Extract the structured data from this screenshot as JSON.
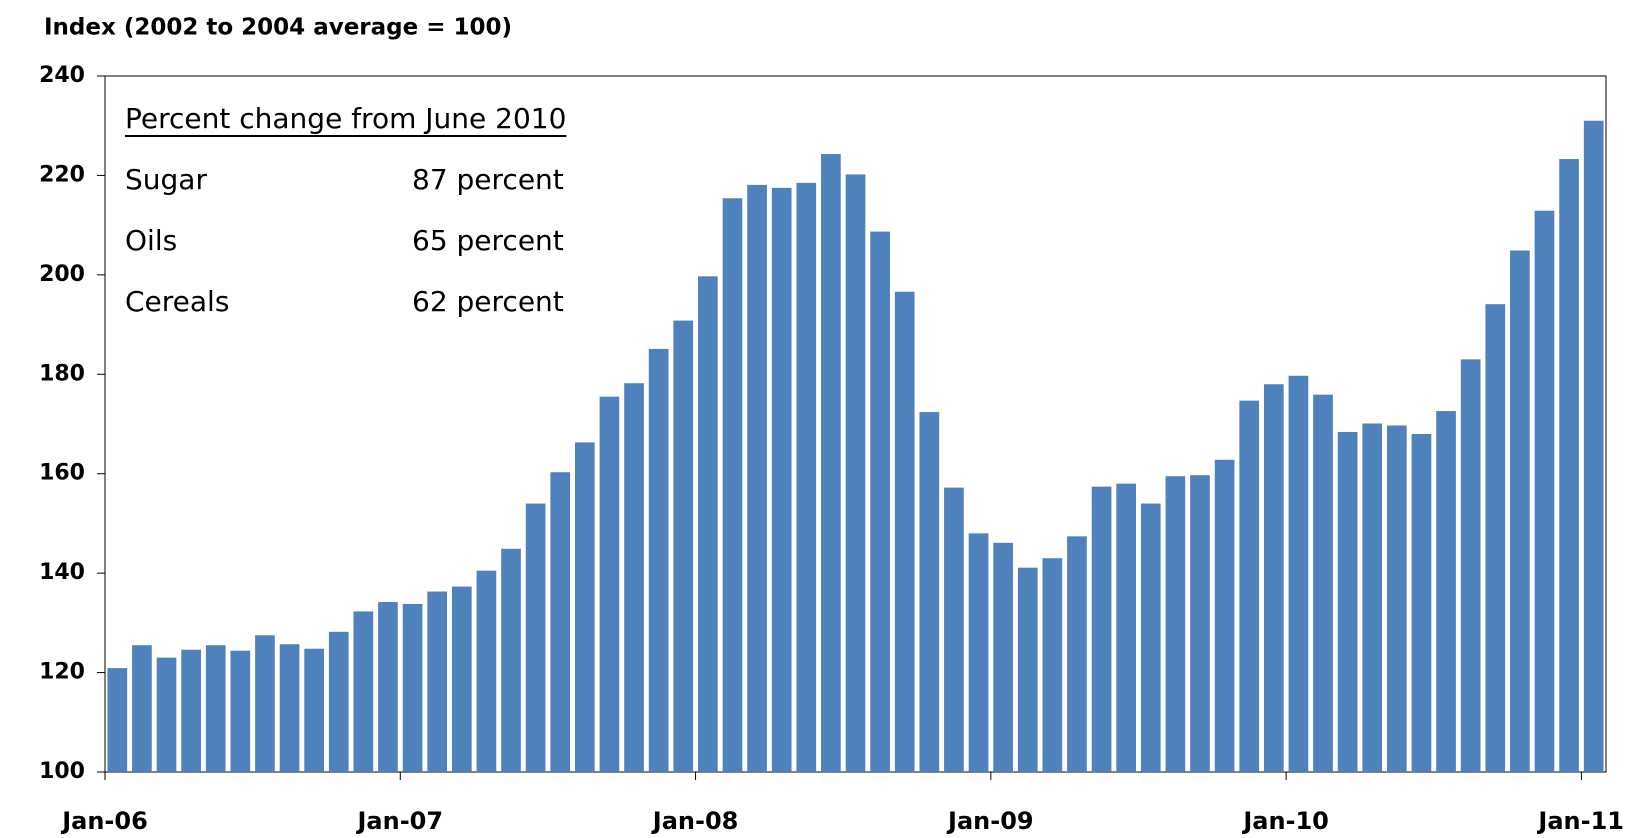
{
  "chart_data": {
    "type": "bar",
    "title": "Index (2002 to 2004 average = 100)",
    "categories": [
      "Jan-06",
      null,
      null,
      null,
      null,
      null,
      null,
      null,
      null,
      null,
      null,
      null,
      "Jan-07",
      null,
      null,
      null,
      null,
      null,
      null,
      null,
      null,
      null,
      null,
      null,
      "Jan-08",
      null,
      null,
      null,
      null,
      null,
      null,
      null,
      null,
      null,
      null,
      null,
      "Jan-09",
      null,
      null,
      null,
      null,
      null,
      null,
      null,
      null,
      null,
      null,
      null,
      "Jan-10",
      null,
      null,
      null,
      null,
      null,
      null,
      null,
      null,
      null,
      null,
      null,
      "Jan-11"
    ],
    "values": [
      120.9,
      125.5,
      123,
      124.6,
      125.5,
      124.4,
      127.5,
      125.7,
      124.8,
      128.2,
      132.3,
      134.2,
      133.8,
      136.3,
      137.3,
      140.5,
      144.9,
      154,
      160.3,
      166.3,
      175.5,
      178.2,
      185.1,
      190.8,
      199.7,
      215.4,
      218.1,
      217.5,
      218.5,
      224.3,
      220.2,
      208.7,
      196.6,
      172.4,
      157.2,
      148,
      146.1,
      141.1,
      143,
      147.4,
      157.4,
      158,
      154,
      159.5,
      159.7,
      162.8,
      174.7,
      178,
      179.7,
      175.9,
      168.4,
      170.1,
      169.7,
      168,
      172.6,
      183,
      194.1,
      204.9,
      212.9,
      223.3,
      231
    ],
    "color": "#4f81bd",
    "ylim": [
      100,
      240
    ],
    "yticks": [
      100,
      120,
      140,
      160,
      180,
      200,
      220,
      240
    ],
    "grid": false,
    "annotation": {
      "title": "Percent change from June 2010",
      "rows": [
        {
          "label": "Sugar",
          "value": "87 percent"
        },
        {
          "label": "Oils",
          "value": "65 percent"
        },
        {
          "label": "Cereals",
          "value": "62 percent"
        }
      ]
    }
  }
}
